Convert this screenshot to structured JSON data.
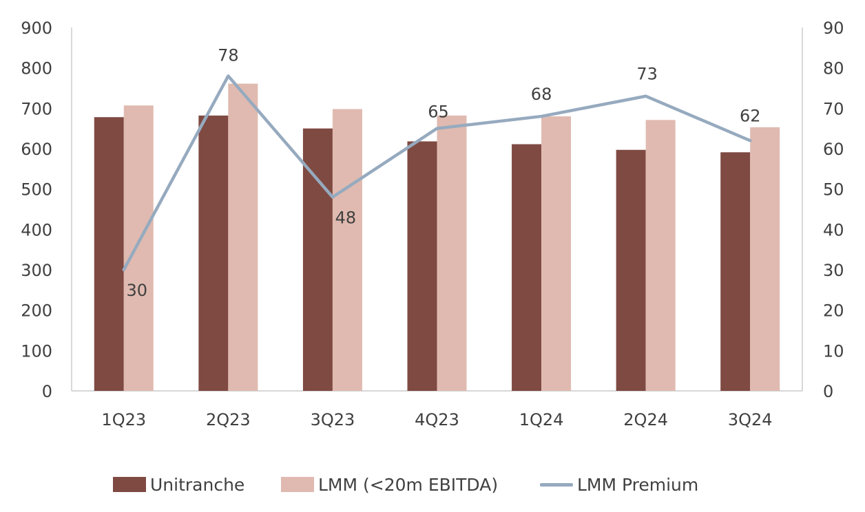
{
  "chart_data": {
    "type": "bar",
    "categories": [
      "1Q23",
      "2Q23",
      "3Q23",
      "4Q23",
      "1Q24",
      "2Q24",
      "3Q24"
    ],
    "series": [
      {
        "name": "Unitranche",
        "kind": "bar",
        "axis": "left",
        "color": "#7f4a42",
        "values": [
          678,
          682,
          650,
          618,
          611,
          597,
          591
        ]
      },
      {
        "name": "LMM (<20m EBITDA)",
        "kind": "bar",
        "axis": "left",
        "color": "#e0bab0",
        "values": [
          707,
          761,
          698,
          682,
          680,
          671,
          653
        ]
      },
      {
        "name": "LMM Premium",
        "kind": "line",
        "axis": "right",
        "color": "#96aabf",
        "values": [
          30,
          78,
          48,
          65,
          68,
          73,
          62
        ],
        "data_labels": [
          "30",
          "78",
          "48",
          "65",
          "68",
          "73",
          "62"
        ]
      }
    ],
    "y_left": {
      "min": 0,
      "max": 900,
      "step": 100,
      "ticks": [
        "0",
        "100",
        "200",
        "300",
        "400",
        "500",
        "600",
        "700",
        "800",
        "900"
      ]
    },
    "y_right": {
      "min": 0,
      "max": 90,
      "step": 10,
      "ticks": [
        "0",
        "10",
        "20",
        "30",
        "40",
        "50",
        "60",
        "70",
        "80",
        "90"
      ]
    },
    "grid": false,
    "legend": {
      "position": "bottom"
    }
  }
}
